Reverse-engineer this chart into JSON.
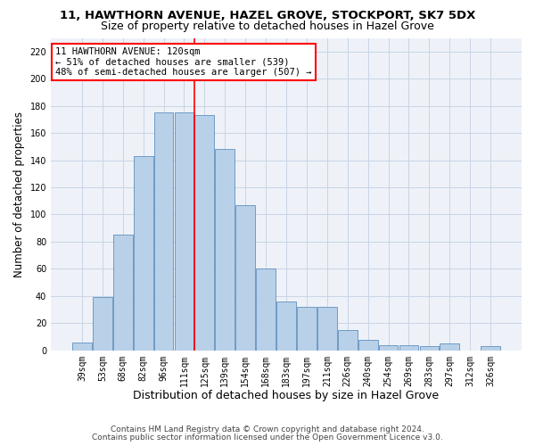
{
  "title_line1": "11, HAWTHORN AVENUE, HAZEL GROVE, STOCKPORT, SK7 5DX",
  "title_line2": "Size of property relative to detached houses in Hazel Grove",
  "xlabel": "Distribution of detached houses by size in Hazel Grove",
  "ylabel": "Number of detached properties",
  "footnote1": "Contains HM Land Registry data © Crown copyright and database right 2024.",
  "footnote2": "Contains public sector information licensed under the Open Government Licence v3.0.",
  "bar_color": "#b8d0e8",
  "bar_edge_color": "#6090c0",
  "annotation_line1": "11 HAWTHORN AVENUE: 120sqm",
  "annotation_line2": "← 51% of detached houses are smaller (539)",
  "annotation_line3": "48% of semi-detached houses are larger (507) →",
  "annotation_box_color": "white",
  "annotation_box_edge_color": "red",
  "vline_color": "red",
  "vline_pos": 5.5,
  "categories": [
    "39sqm",
    "53sqm",
    "68sqm",
    "82sqm",
    "96sqm",
    "111sqm",
    "125sqm",
    "139sqm",
    "154sqm",
    "168sqm",
    "183sqm",
    "197sqm",
    "211sqm",
    "226sqm",
    "240sqm",
    "254sqm",
    "269sqm",
    "283sqm",
    "297sqm",
    "312sqm",
    "326sqm"
  ],
  "values": [
    6,
    39,
    85,
    143,
    175,
    175,
    173,
    148,
    107,
    60,
    36,
    32,
    32,
    15,
    8,
    4,
    4,
    3,
    5,
    0,
    3
  ],
  "ylim": [
    0,
    230
  ],
  "yticks": [
    0,
    20,
    40,
    60,
    80,
    100,
    120,
    140,
    160,
    180,
    200,
    220
  ],
  "bg_color": "#eef2f8",
  "grid_color": "#c8d4e4",
  "title1_fontsize": 9.5,
  "title2_fontsize": 9,
  "xlabel_fontsize": 9,
  "ylabel_fontsize": 8.5,
  "tick_fontsize": 7,
  "annotation_fontsize": 7.5,
  "footnote_fontsize": 6.5
}
